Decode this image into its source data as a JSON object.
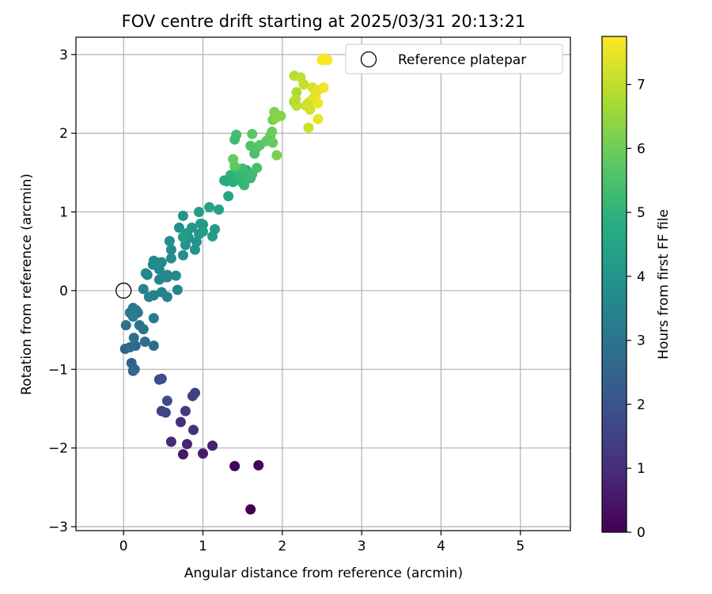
{
  "chart_data": {
    "type": "scatter",
    "title": "FOV centre drift starting at 2025/03/31 20:13:21",
    "xlabel": "Angular distance from reference (arcmin)",
    "ylabel": "Rotation from reference (arcmin)",
    "xlim": [
      -0.6,
      5.63
    ],
    "ylim": [
      -3.05,
      3.22
    ],
    "xticks": [
      0,
      1,
      2,
      3,
      4,
      5
    ],
    "yticks": [
      -3,
      -2,
      -1,
      0,
      1,
      2,
      3
    ],
    "xtick_labels": [
      "0",
      "1",
      "2",
      "3",
      "4",
      "5"
    ],
    "ytick_labels": [
      "−3",
      "−2",
      "−1",
      "0",
      "1",
      "2",
      "3"
    ],
    "grid": true,
    "legend": {
      "position": "upper-right",
      "entries": [
        "Reference platepar"
      ]
    },
    "reference_point": {
      "label": "Reference platepar",
      "x": 0.0,
      "y": 0.0
    },
    "colorbar": {
      "label": "Hours from first FF file",
      "colormap": "viridis",
      "min": 0,
      "max": 7.75,
      "ticks": [
        0,
        1,
        2,
        3,
        4,
        5,
        6,
        7
      ],
      "tick_labels": [
        "0",
        "1",
        "2",
        "3",
        "4",
        "5",
        "6",
        "7"
      ]
    },
    "series": [
      {
        "x": [
          1.6,
          1.4,
          1.7,
          0.75,
          1.0,
          1.12,
          0.8,
          0.6,
          0.72,
          0.88,
          0.78,
          0.48,
          0.53,
          0.9,
          0.87,
          0.45,
          0.55,
          0.48,
          0.12,
          0.1,
          0.02,
          0.14,
          0.15,
          0.08,
          0.38,
          0.27,
          0.13,
          0.2,
          0.25,
          0.03,
          0.18,
          0.16,
          0.12,
          0.08,
          0.12,
          0.38,
          0.32,
          0.55,
          0.38,
          0.48,
          0.68,
          0.45,
          0.5,
          0.25,
          0.55,
          0.3,
          0.55,
          0.66,
          0.37,
          0.45,
          0.48,
          0.41,
          0.28,
          0.38,
          0.6,
          0.6,
          0.58,
          0.75,
          0.7,
          0.78,
          0.9,
          0.75,
          0.92,
          0.95,
          0.82,
          0.8,
          0.86,
          1.0,
          1.12,
          1.15,
          1.0,
          0.97,
          0.95,
          0.75,
          1.2,
          1.08,
          1.32,
          1.3,
          1.27,
          1.38,
          1.42,
          1.35,
          1.5,
          1.45,
          1.55,
          1.52,
          1.5,
          1.48,
          1.52,
          1.45,
          1.55,
          1.6,
          1.58,
          1.62,
          1.5,
          1.4,
          1.42,
          1.68,
          1.65,
          1.68,
          1.72,
          1.8,
          1.85,
          1.88,
          1.87,
          1.6,
          1.62,
          1.4,
          1.38,
          1.88,
          1.9,
          1.98,
          1.93,
          1.92,
          2.15,
          2.18,
          2.15,
          2.23,
          2.27,
          2.3,
          2.33,
          2.35,
          2.38,
          2.4,
          2.42,
          2.45,
          2.42,
          2.37,
          2.35,
          2.45,
          2.45,
          2.52,
          2.5,
          2.53,
          2.57,
          2.32,
          2.18,
          2.17
        ],
        "y": [
          -2.78,
          -2.23,
          -2.22,
          -2.08,
          -2.07,
          -1.97,
          -1.95,
          -1.92,
          -1.67,
          -1.77,
          -1.53,
          -1.53,
          -1.55,
          -1.3,
          -1.34,
          -1.13,
          -1.4,
          -1.12,
          -1.02,
          -0.92,
          -0.74,
          -1.0,
          -0.7,
          -0.72,
          -0.7,
          -0.65,
          -0.6,
          -0.44,
          -0.49,
          -0.44,
          -0.28,
          -0.25,
          -0.22,
          -0.28,
          -0.33,
          -0.35,
          -0.08,
          -0.08,
          -0.06,
          -0.02,
          0.01,
          0.14,
          0.17,
          0.02,
          0.17,
          0.2,
          0.2,
          0.19,
          0.33,
          0.27,
          0.36,
          0.36,
          0.22,
          0.38,
          0.41,
          0.52,
          0.63,
          0.45,
          0.8,
          0.58,
          0.52,
          0.95,
          0.62,
          0.72,
          0.67,
          0.73,
          0.8,
          0.84,
          0.69,
          0.78,
          0.75,
          0.85,
          1.0,
          0.68,
          1.03,
          1.06,
          1.2,
          1.39,
          1.4,
          1.38,
          1.45,
          1.47,
          1.52,
          1.5,
          1.53,
          1.47,
          1.37,
          1.4,
          1.34,
          1.49,
          1.42,
          1.43,
          1.45,
          1.48,
          1.55,
          1.92,
          1.98,
          1.56,
          1.74,
          1.82,
          1.85,
          1.9,
          1.97,
          1.88,
          2.02,
          1.84,
          1.99,
          1.58,
          1.67,
          2.17,
          2.27,
          2.22,
          1.72,
          2.2,
          2.4,
          2.52,
          2.73,
          2.71,
          2.62,
          2.35,
          2.07,
          2.3,
          2.58,
          2.45,
          2.53,
          2.55,
          2.47,
          2.42,
          2.4,
          2.18,
          2.38,
          2.58,
          2.93,
          2.95,
          2.93,
          2.38,
          2.35,
          2.43
        ],
        "hours": [
          0.0,
          0.05,
          0.1,
          0.5,
          0.6,
          0.7,
          0.8,
          0.9,
          1.0,
          1.1,
          1.3,
          1.5,
          1.6,
          1.4,
          1.5,
          1.7,
          1.8,
          1.9,
          2.3,
          2.4,
          2.5,
          2.6,
          2.55,
          2.6,
          2.7,
          2.8,
          2.85,
          2.9,
          2.95,
          2.9,
          3.0,
          3.05,
          3.1,
          3.15,
          3.2,
          3.25,
          3.3,
          3.35,
          3.3,
          3.4,
          3.45,
          3.5,
          3.5,
          3.4,
          3.55,
          3.5,
          3.6,
          3.65,
          3.6,
          3.6,
          3.65,
          3.7,
          3.6,
          3.7,
          3.75,
          3.75,
          3.8,
          3.85,
          3.9,
          3.9,
          3.95,
          4.0,
          4.0,
          4.05,
          4.0,
          4.1,
          4.1,
          4.15,
          4.2,
          4.2,
          4.3,
          4.2,
          4.25,
          4.3,
          4.4,
          4.5,
          4.55,
          4.7,
          4.75,
          4.85,
          4.9,
          4.9,
          4.95,
          5.0,
          5.0,
          5.05,
          5.1,
          5.05,
          5.1,
          5.1,
          5.15,
          5.2,
          5.2,
          5.25,
          5.3,
          5.3,
          5.35,
          5.4,
          5.5,
          5.6,
          5.7,
          5.8,
          5.85,
          5.9,
          6.0,
          5.6,
          5.7,
          5.8,
          5.9,
          6.1,
          6.2,
          6.3,
          6.15,
          6.35,
          6.6,
          6.75,
          6.9,
          7.0,
          7.05,
          7.1,
          7.15,
          7.2,
          7.25,
          7.3,
          7.35,
          7.4,
          7.45,
          7.4,
          7.45,
          7.5,
          7.55,
          7.6,
          7.65,
          7.7,
          7.7,
          7.2,
          7.0,
          6.95
        ]
      }
    ]
  }
}
